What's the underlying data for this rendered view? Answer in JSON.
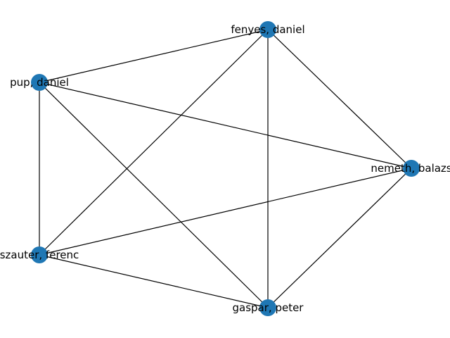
{
  "graph": {
    "node_color": "#1f77b4",
    "edge_color": "#000000",
    "nodes": [
      {
        "id": "fenyes",
        "label": "fenyes, daniel"
      },
      {
        "id": "pup",
        "label": "pup, daniel"
      },
      {
        "id": "nemeth",
        "label": "nemeth, balazs"
      },
      {
        "id": "szauter",
        "label": "szauter, ferenc"
      },
      {
        "id": "gaspar",
        "label": "gaspar, peter"
      }
    ],
    "edges": [
      [
        "fenyes",
        "pup"
      ],
      [
        "fenyes",
        "nemeth"
      ],
      [
        "fenyes",
        "szauter"
      ],
      [
        "fenyes",
        "gaspar"
      ],
      [
        "pup",
        "nemeth"
      ],
      [
        "pup",
        "szauter"
      ],
      [
        "pup",
        "gaspar"
      ],
      [
        "nemeth",
        "szauter"
      ],
      [
        "nemeth",
        "gaspar"
      ],
      [
        "szauter",
        "gaspar"
      ]
    ]
  }
}
